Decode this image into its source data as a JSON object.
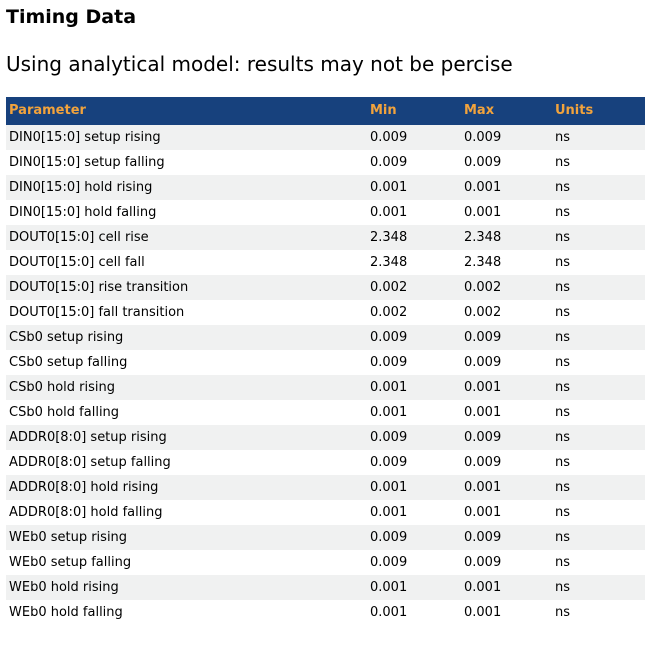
{
  "page": {
    "title": "Timing Data",
    "subtitle": "Using analytical model: results may not be percise"
  },
  "colors": {
    "header_bg": "#17417D",
    "header_text": "#F2A33C",
    "row_stripe": "#F0F1F1",
    "text": "#000000"
  },
  "table": {
    "columns": [
      "Parameter",
      "Min",
      "Max",
      "Units"
    ],
    "rows": [
      {
        "parameter": "DIN0[15:0] setup rising",
        "min": "0.009",
        "max": "0.009",
        "units": "ns"
      },
      {
        "parameter": "DIN0[15:0] setup falling",
        "min": "0.009",
        "max": "0.009",
        "units": "ns"
      },
      {
        "parameter": "DIN0[15:0] hold rising",
        "min": "0.001",
        "max": "0.001",
        "units": "ns"
      },
      {
        "parameter": "DIN0[15:0] hold falling",
        "min": "0.001",
        "max": "0.001",
        "units": "ns"
      },
      {
        "parameter": "DOUT0[15:0] cell rise",
        "min": "2.348",
        "max": "2.348",
        "units": "ns"
      },
      {
        "parameter": "DOUT0[15:0] cell fall",
        "min": "2.348",
        "max": "2.348",
        "units": "ns"
      },
      {
        "parameter": "DOUT0[15:0] rise transition",
        "min": "0.002",
        "max": "0.002",
        "units": "ns"
      },
      {
        "parameter": "DOUT0[15:0] fall transition",
        "min": "0.002",
        "max": "0.002",
        "units": "ns"
      },
      {
        "parameter": "CSb0 setup rising",
        "min": "0.009",
        "max": "0.009",
        "units": "ns"
      },
      {
        "parameter": "CSb0 setup falling",
        "min": "0.009",
        "max": "0.009",
        "units": "ns"
      },
      {
        "parameter": "CSb0 hold rising",
        "min": "0.001",
        "max": "0.001",
        "units": "ns"
      },
      {
        "parameter": "CSb0 hold falling",
        "min": "0.001",
        "max": "0.001",
        "units": "ns"
      },
      {
        "parameter": "ADDR0[8:0] setup rising",
        "min": "0.009",
        "max": "0.009",
        "units": "ns"
      },
      {
        "parameter": "ADDR0[8:0] setup falling",
        "min": "0.009",
        "max": "0.009",
        "units": "ns"
      },
      {
        "parameter": "ADDR0[8:0] hold rising",
        "min": "0.001",
        "max": "0.001",
        "units": "ns"
      },
      {
        "parameter": "ADDR0[8:0] hold falling",
        "min": "0.001",
        "max": "0.001",
        "units": "ns"
      },
      {
        "parameter": "WEb0 setup rising",
        "min": "0.009",
        "max": "0.009",
        "units": "ns"
      },
      {
        "parameter": "WEb0 setup falling",
        "min": "0.009",
        "max": "0.009",
        "units": "ns"
      },
      {
        "parameter": "WEb0 hold rising",
        "min": "0.001",
        "max": "0.001",
        "units": "ns"
      },
      {
        "parameter": "WEb0 hold falling",
        "min": "0.001",
        "max": "0.001",
        "units": "ns"
      }
    ]
  }
}
